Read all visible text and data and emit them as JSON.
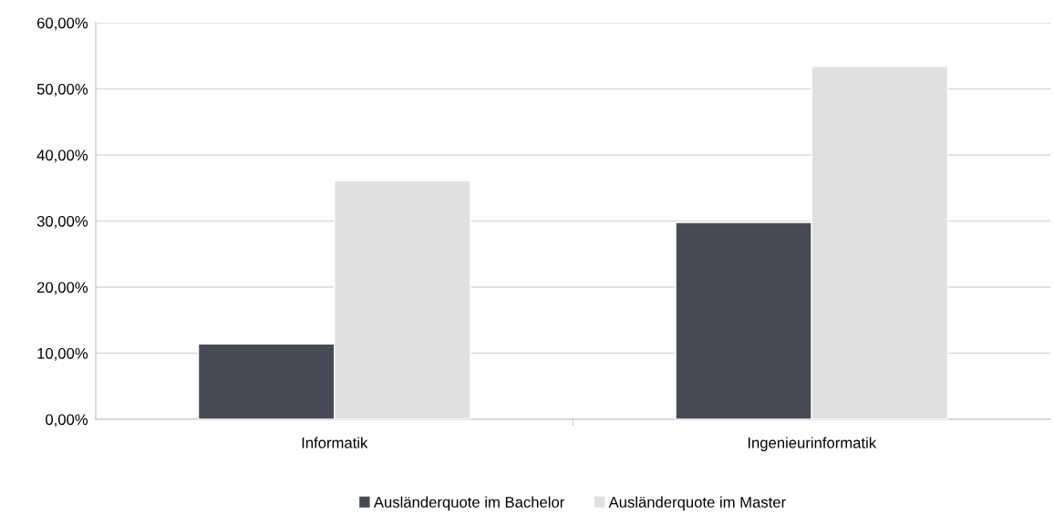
{
  "chart_data": {
    "type": "bar",
    "categories": [
      "Informatik",
      "Ingenieurinformatik"
    ],
    "series": [
      {
        "name": "Ausländerquote im Bachelor",
        "color": "#454a56",
        "values": [
          11.4,
          29.8
        ]
      },
      {
        "name": "Ausländerquote im Master",
        "color": "#e0e0e0",
        "values": [
          36.1,
          53.4
        ]
      }
    ],
    "ylim": [
      0,
      60
    ],
    "yticks": [
      {
        "value": 0,
        "label": "0,00%"
      },
      {
        "value": 10,
        "label": "10,00%"
      },
      {
        "value": 20,
        "label": "20,00%"
      },
      {
        "value": 30,
        "label": "30,00%"
      },
      {
        "value": 40,
        "label": "40,00%"
      },
      {
        "value": 50,
        "label": "50,00%"
      },
      {
        "value": 60,
        "label": "60,00%"
      }
    ],
    "grid": "y",
    "legend": "bottom"
  }
}
